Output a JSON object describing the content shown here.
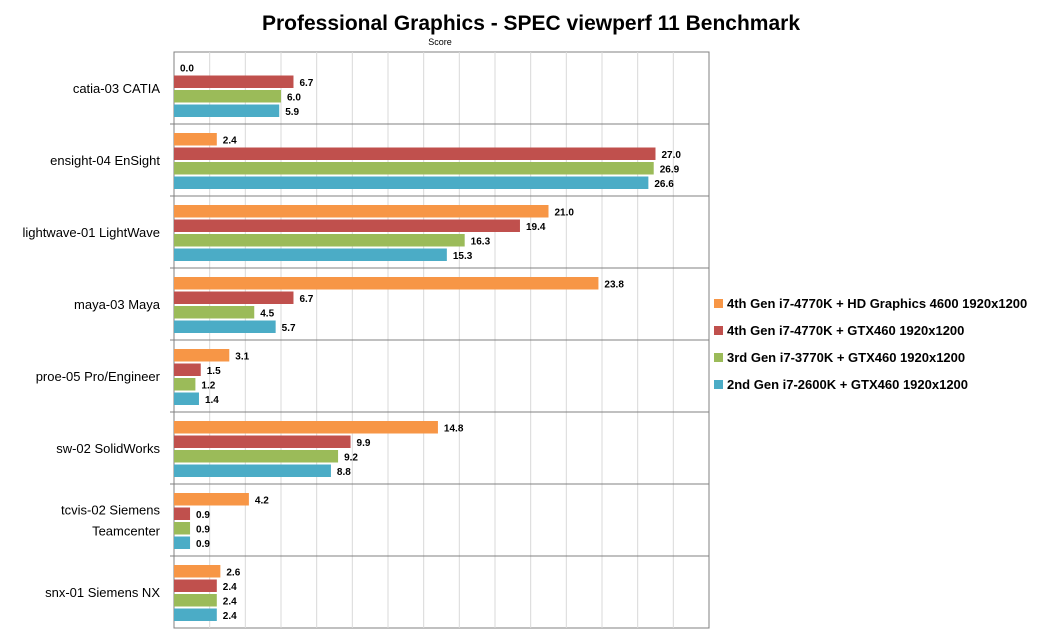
{
  "chart_data": {
    "type": "bar",
    "orientation": "horizontal",
    "title": "Professional Graphics - SPEC viewperf 11 Benchmark",
    "subtitle": "Score",
    "xlim": [
      0,
      30
    ],
    "grid": true,
    "legend_position": "right",
    "categories": [
      "catia-03 CATIA",
      "ensight-04 EnSight",
      "lightwave-01 LightWave",
      "maya-03 Maya",
      "proe-05 Pro/Engineer",
      "sw-02 SolidWorks",
      "tcvis-02 Siemens Teamcenter",
      "snx-01 Siemens NX"
    ],
    "series": [
      {
        "name": "4th Gen i7-4770K + HD Graphics 4600 1920x1200",
        "color": "#f79646",
        "values": [
          0.0,
          2.4,
          21.0,
          23.8,
          3.1,
          14.8,
          4.2,
          2.6
        ]
      },
      {
        "name": "4th Gen i7-4770K + GTX460 1920x1200",
        "color": "#c0504d",
        "values": [
          6.7,
          27.0,
          19.4,
          6.7,
          1.5,
          9.9,
          0.9,
          2.4
        ]
      },
      {
        "name": "3rd Gen i7-3770K + GTX460 1920x1200",
        "color": "#9bbb59",
        "values": [
          6.0,
          26.9,
          16.3,
          4.5,
          1.2,
          9.2,
          0.9,
          2.4
        ]
      },
      {
        "name": "2nd Gen i7-2600K + GTX460 1920x1200",
        "color": "#4bacc6",
        "values": [
          5.9,
          26.6,
          15.3,
          5.7,
          1.4,
          8.8,
          0.9,
          2.4
        ]
      }
    ]
  }
}
